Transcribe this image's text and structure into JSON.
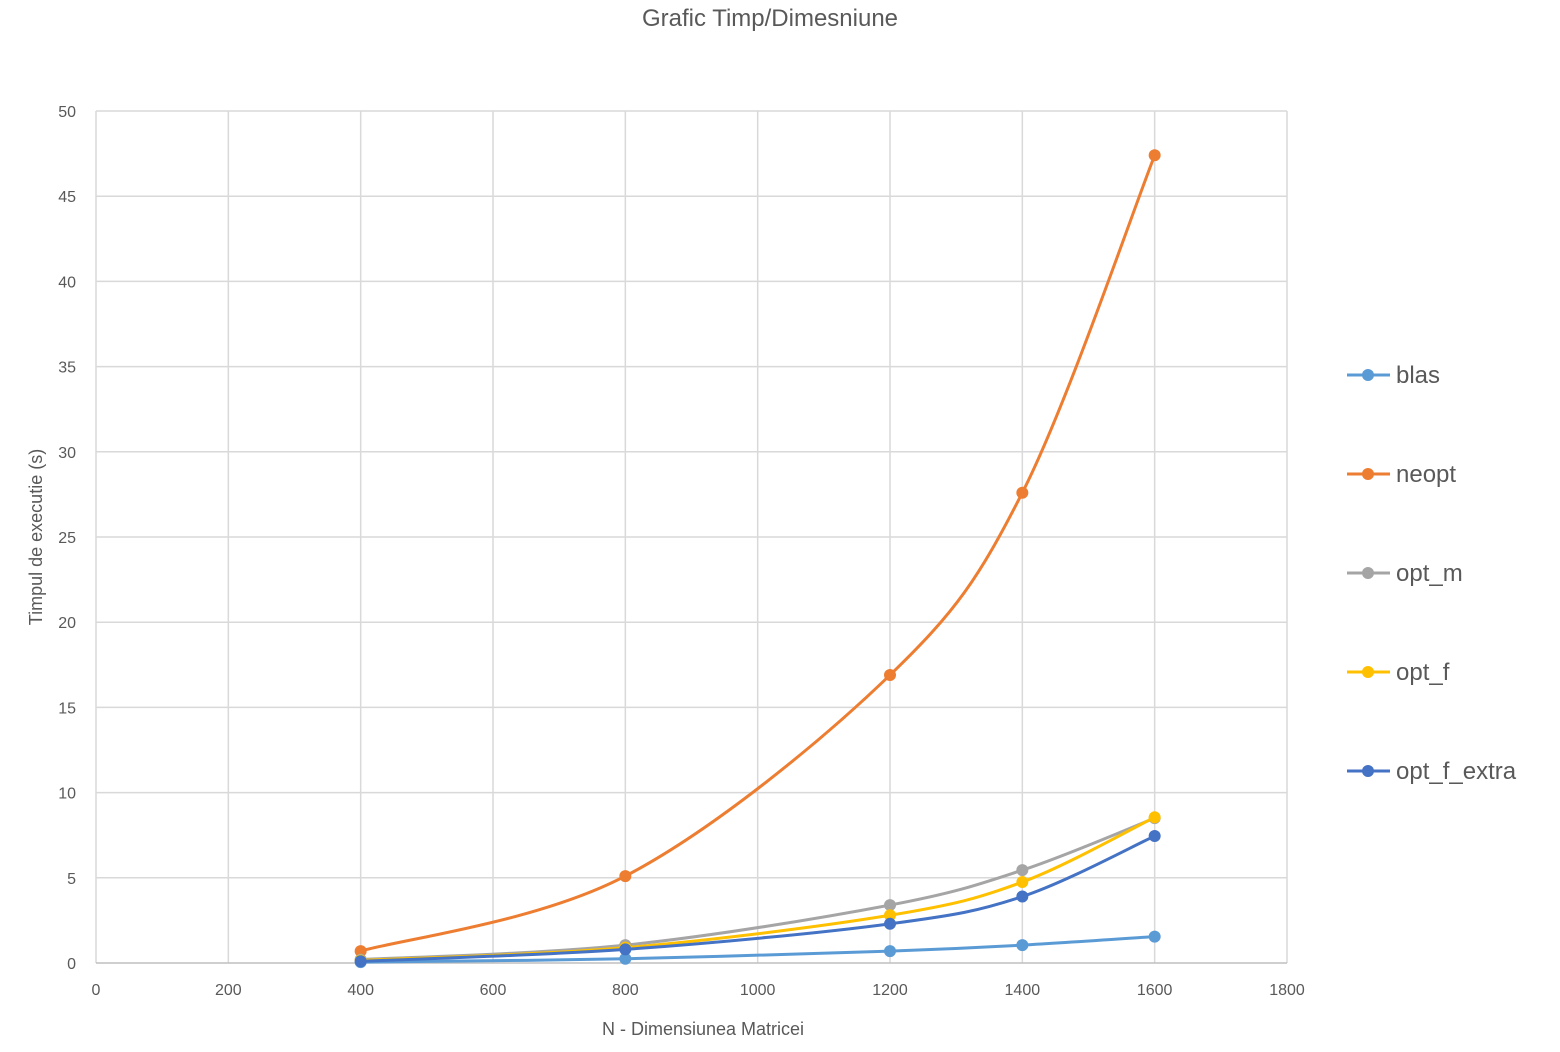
{
  "chart_data": {
    "type": "line",
    "title": "Grafic Timp/Dimesniune",
    "xlabel": "N - Dimensiunea Matricei",
    "ylabel": "Timpul de executie (s)",
    "xlim": [
      0,
      1800
    ],
    "ylim": [
      0,
      50
    ],
    "x_ticks": [
      0,
      200,
      400,
      600,
      800,
      1000,
      1200,
      1400,
      1600,
      1800
    ],
    "y_ticks": [
      0,
      5,
      10,
      15,
      20,
      25,
      30,
      35,
      40,
      45,
      50
    ],
    "grid": true,
    "smooth": true,
    "legend_position": "right",
    "x": [
      400,
      800,
      1200,
      1400,
      1600
    ],
    "series": [
      {
        "name": "blas",
        "color": "#5B9BD5",
        "values": [
          0.05,
          0.25,
          0.7,
          1.05,
          1.55
        ]
      },
      {
        "name": "neopt",
        "color": "#ED7D31",
        "values": [
          0.7,
          5.1,
          16.9,
          27.6,
          47.4
        ]
      },
      {
        "name": "opt_m",
        "color": "#A5A5A5",
        "values": [
          0.2,
          1.05,
          3.4,
          5.45,
          8.5
        ]
      },
      {
        "name": "opt_f",
        "color": "#FFC000",
        "values": [
          0.15,
          0.9,
          2.8,
          4.75,
          8.55
        ]
      },
      {
        "name": "opt_f_extra",
        "color": "#4472C4",
        "values": [
          0.1,
          0.8,
          2.3,
          3.9,
          7.45
        ]
      }
    ]
  }
}
